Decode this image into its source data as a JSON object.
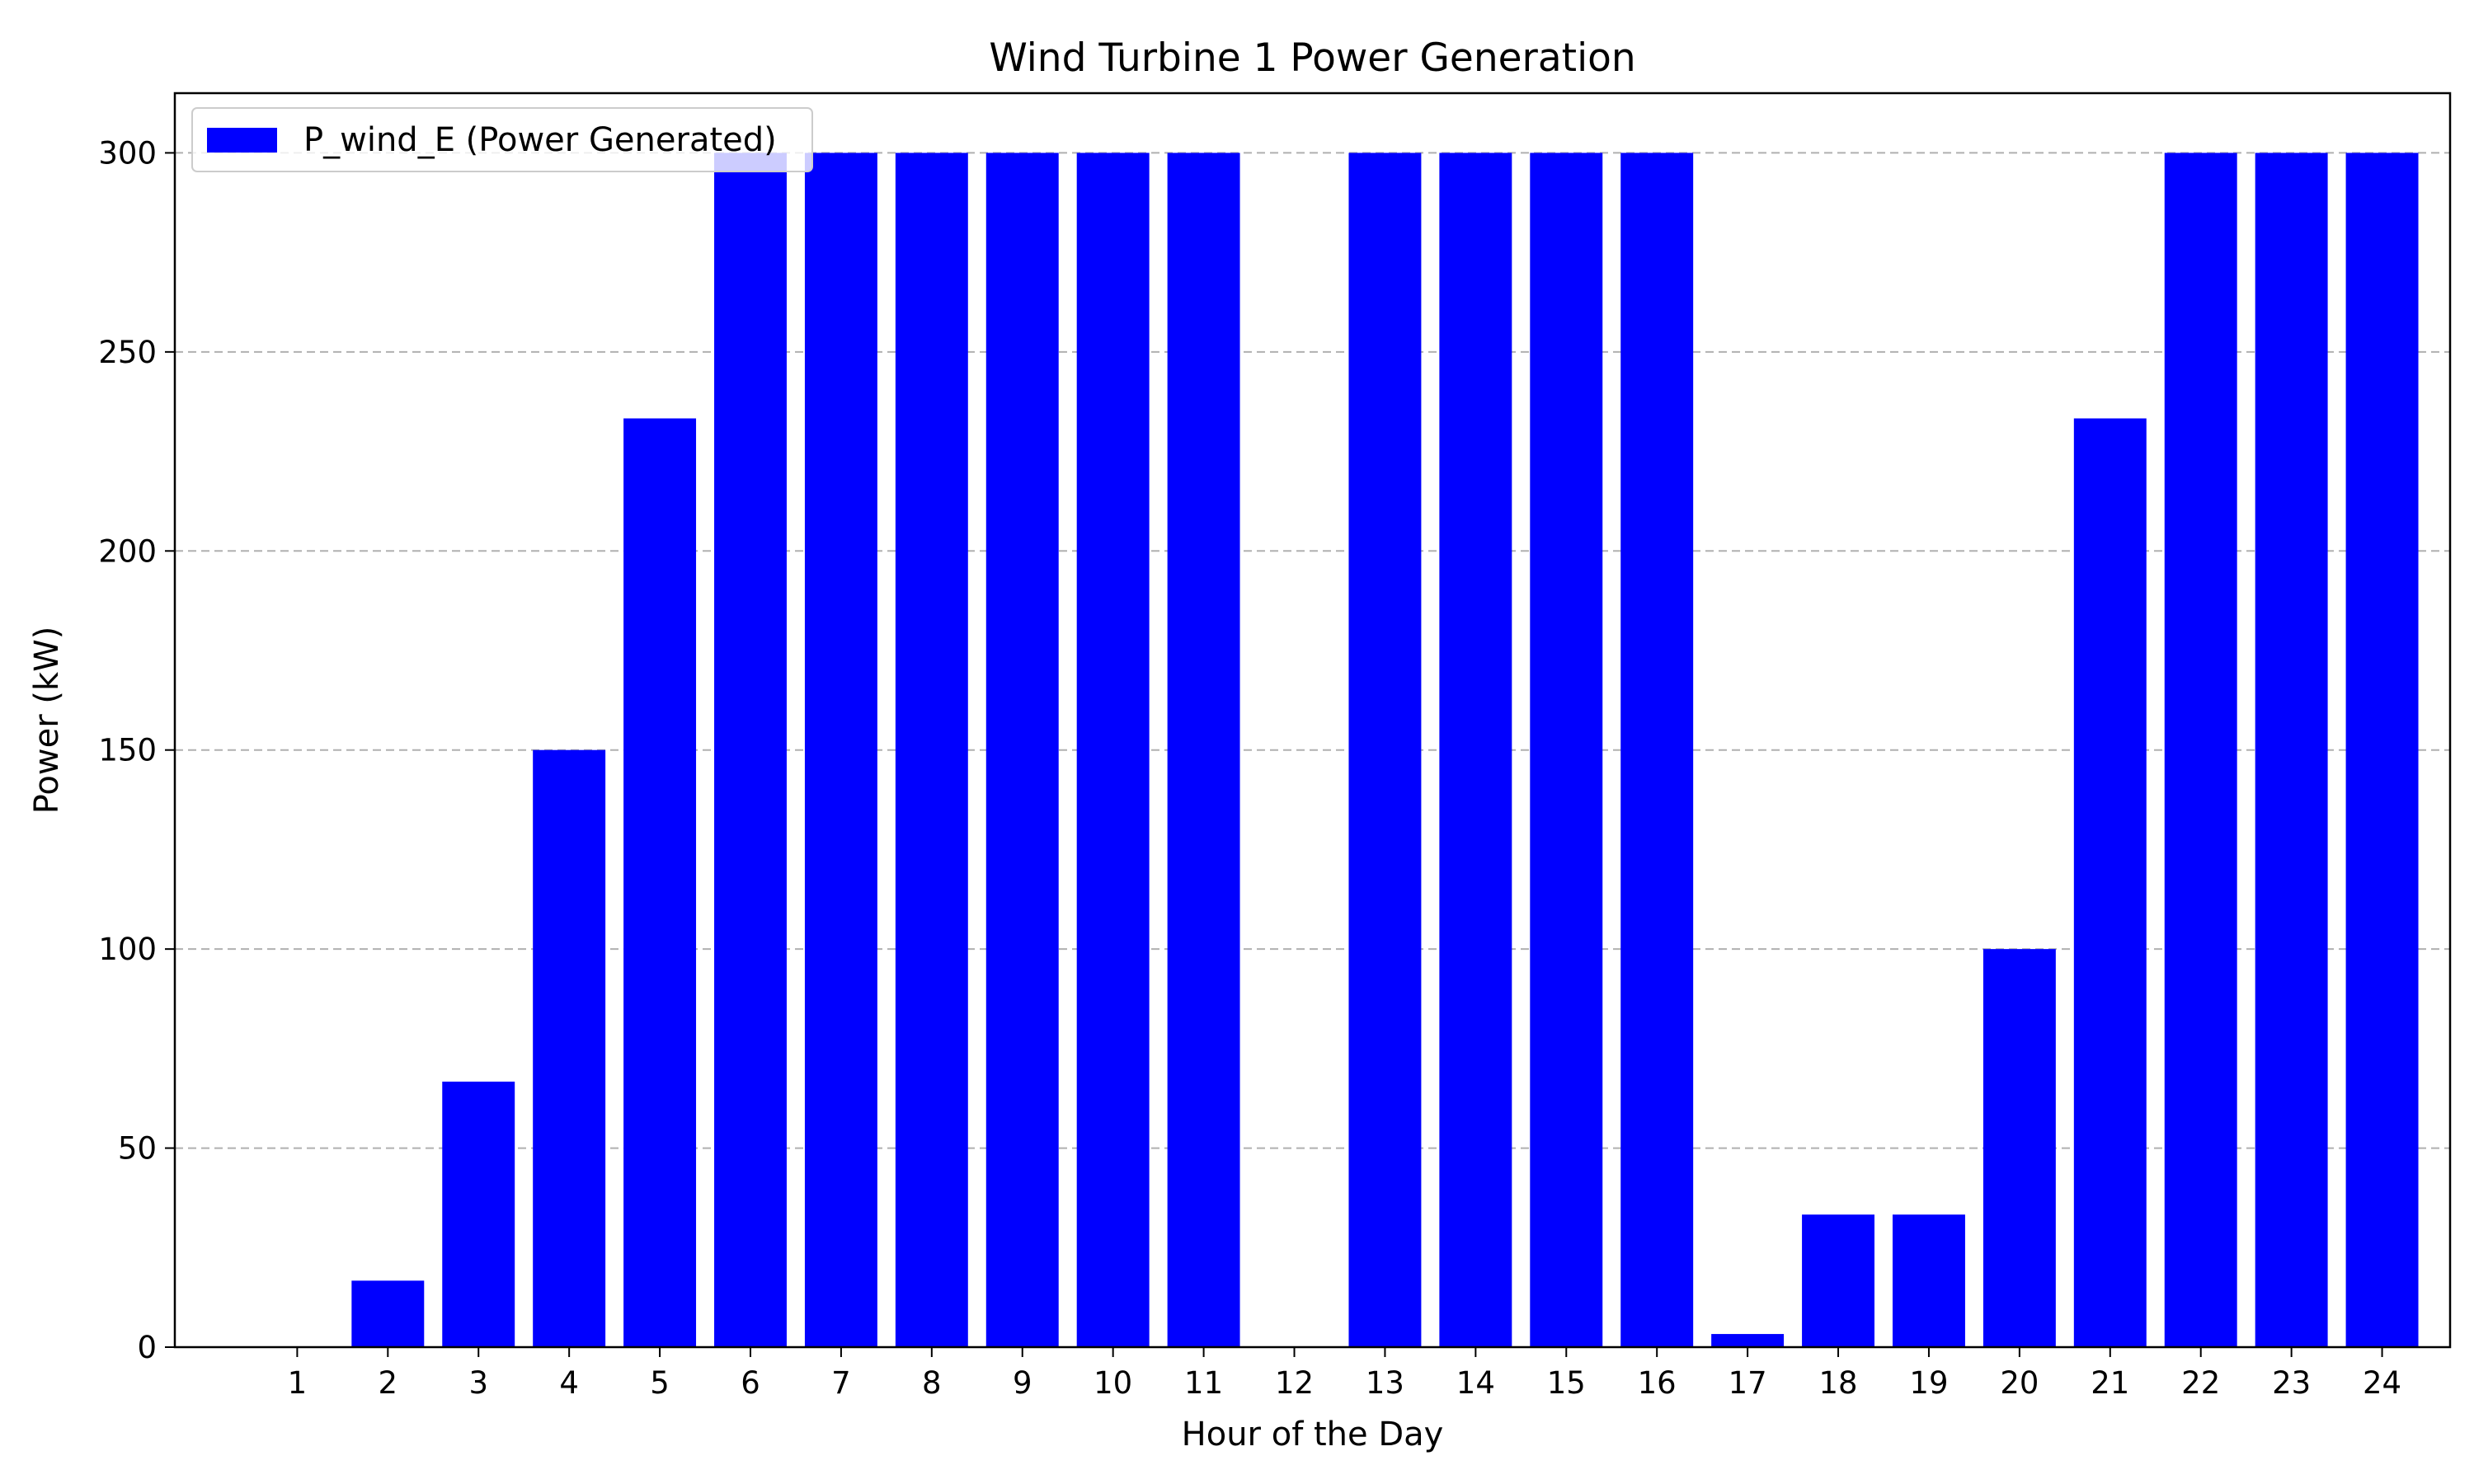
{
  "chart_data": {
    "type": "bar",
    "title": "Wind Turbine 1 Power Generation",
    "xlabel": "Hour of the Day",
    "ylabel": "Power (kW)",
    "categories": [
      "1",
      "2",
      "3",
      "4",
      "5",
      "6",
      "7",
      "8",
      "9",
      "10",
      "11",
      "12",
      "13",
      "14",
      "15",
      "16",
      "17",
      "18",
      "19",
      "20",
      "21",
      "22",
      "23",
      "24"
    ],
    "series": [
      {
        "name": "P_wind_E (Power Generated)",
        "color": "#0000ff",
        "values": [
          0,
          16.7,
          66.7,
          150,
          233.3,
          300,
          300,
          300,
          300,
          300,
          300,
          0,
          300,
          300,
          300,
          300,
          3.3,
          33.3,
          33.3,
          100,
          233.3,
          300,
          300,
          300
        ]
      }
    ],
    "ylim": [
      0,
      315
    ],
    "yticks": [
      0,
      50,
      100,
      150,
      200,
      250,
      300
    ],
    "xlim": [
      -0.35,
      24.75
    ],
    "grid": "y-dashed",
    "legend_position": "top-left"
  }
}
